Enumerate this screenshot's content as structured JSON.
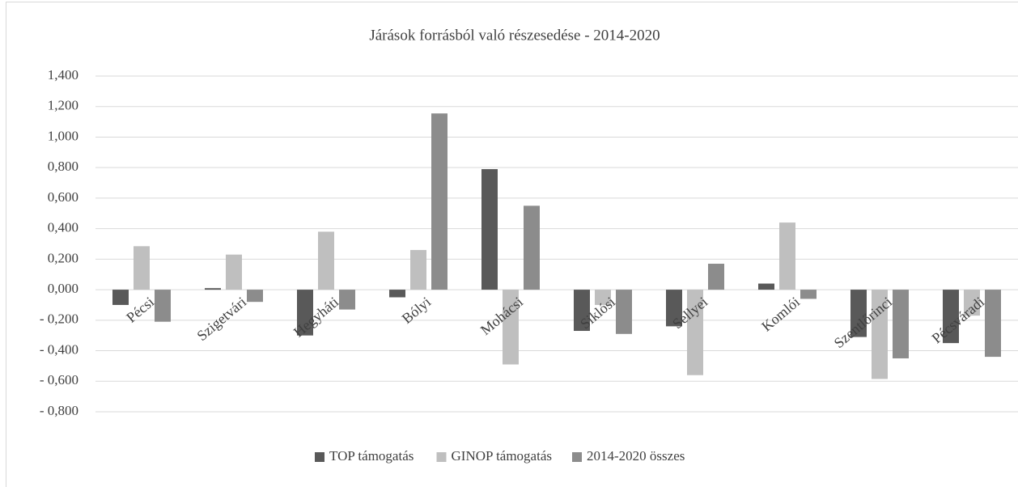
{
  "chart_data": {
    "type": "bar",
    "title": "Járások forrásból való részesedése - 2014-2020",
    "categories": [
      "Pécsi",
      "Szigetvári",
      "Hegyháti",
      "Bólyi",
      "Mohácsi",
      "Siklósi",
      "Sellyei",
      "Komlói",
      "Szentlőrinci",
      "Pécsváradi"
    ],
    "series": [
      {
        "name": "TOP támogatás",
        "color": "#595959",
        "values": [
          -0.1,
          0.01,
          -0.3,
          -0.05,
          0.79,
          -0.27,
          -0.24,
          0.04,
          -0.31,
          -0.35
        ]
      },
      {
        "name": "GINOP támogatás",
        "color": "#bfbfbf",
        "values": [
          0.285,
          0.23,
          0.38,
          0.26,
          -0.49,
          -0.1,
          -0.56,
          0.44,
          -0.585,
          -0.17
        ]
      },
      {
        "name": "2014-2020 összes",
        "color": "#8c8c8c",
        "values": [
          -0.21,
          -0.08,
          -0.13,
          1.155,
          0.55,
          -0.29,
          0.17,
          -0.06,
          -0.45,
          -0.44
        ]
      }
    ],
    "ylim": [
      -0.8,
      1.4
    ],
    "yticks": [
      {
        "value": -0.8,
        "label": "- 0,800"
      },
      {
        "value": -0.6,
        "label": "- 0,600"
      },
      {
        "value": -0.4,
        "label": "- 0,400"
      },
      {
        "value": -0.2,
        "label": "- 0,200"
      },
      {
        "value": 0,
        "label": "0,000"
      },
      {
        "value": 0.2,
        "label": "0,200"
      },
      {
        "value": 0.4,
        "label": "0,400"
      },
      {
        "value": 0.6,
        "label": "0,600"
      },
      {
        "value": 0.8,
        "label": "0,800"
      },
      {
        "value": 1.0,
        "label": "1,000"
      },
      {
        "value": 1.2,
        "label": "1,200"
      },
      {
        "value": 1.4,
        "label": "1,400"
      }
    ],
    "grid": true,
    "legend": "bottom"
  }
}
